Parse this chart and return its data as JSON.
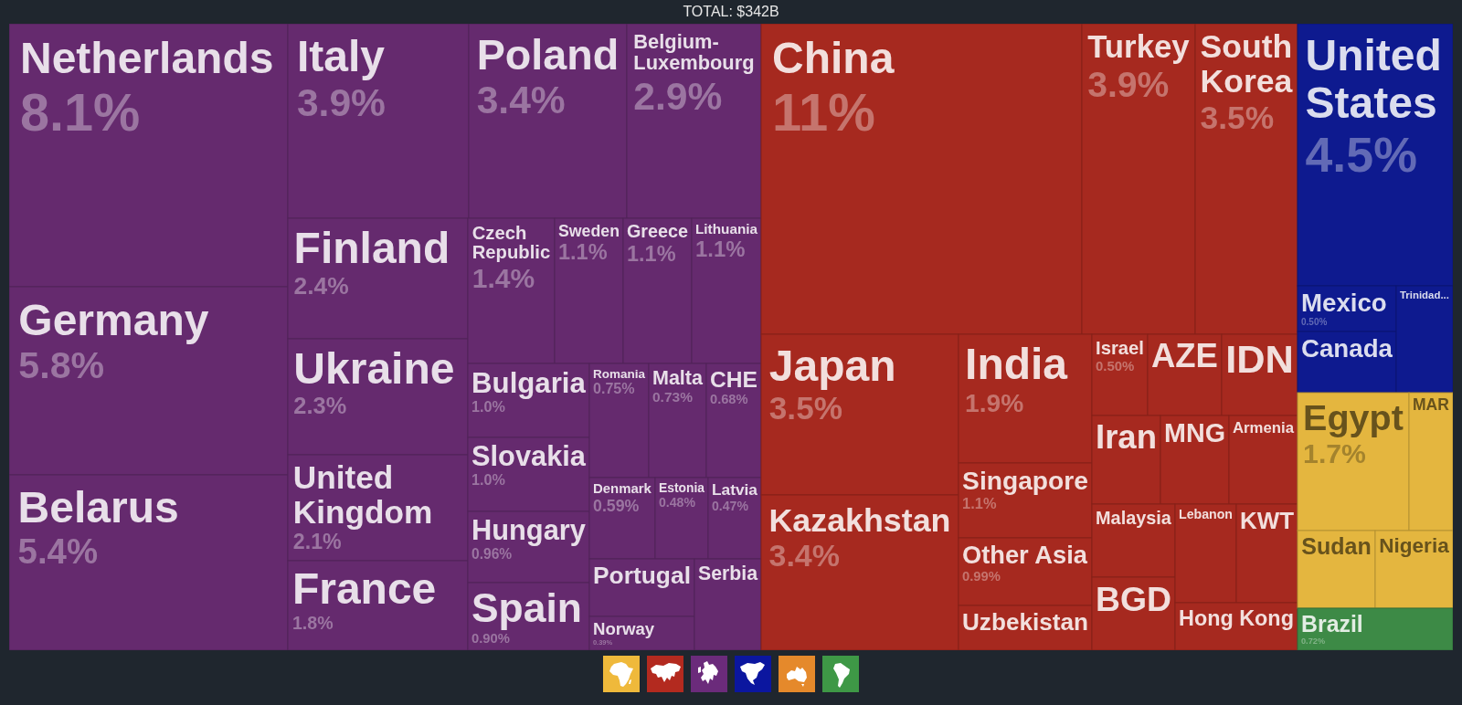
{
  "chart_data": {
    "type": "other",
    "title": "TOTAL: $342B",
    "categories": [
      "Netherlands",
      "Germany",
      "Belarus",
      "Italy",
      "Poland",
      "Belgium-Luxembourg",
      "Finland",
      "Ukraine",
      "United Kingdom",
      "France",
      "Czech Republic",
      "Sweden",
      "Greece",
      "Lithuania",
      "Bulgaria",
      "Slovakia",
      "Hungary",
      "Spain",
      "Romania",
      "Malta",
      "CHE",
      "Denmark",
      "Estonia",
      "Latvia",
      "Portugal",
      "Norway",
      "Serbia",
      "China",
      "Turkey",
      "South Korea",
      "Japan",
      "Kazakhstan",
      "India",
      "Singapore",
      "Other Asia",
      "Uzbekistan",
      "Israel",
      "AZE",
      "IDN",
      "Iran",
      "MNG",
      "Armenia",
      "Malaysia",
      "BGD",
      "Lebanon",
      "KWT",
      "Hong Kong",
      "United States",
      "Mexico",
      "Canada",
      "Trinidad...",
      "Egypt",
      "MAR",
      "Sudan",
      "Nigeria",
      "Brazil"
    ],
    "values": [
      8.1,
      5.8,
      5.4,
      3.9,
      3.4,
      2.9,
      2.4,
      2.3,
      2.1,
      1.8,
      1.4,
      1.1,
      1.1,
      1.1,
      1.0,
      1.0,
      0.96,
      0.9,
      0.75,
      0.73,
      0.68,
      0.59,
      0.48,
      0.47,
      null,
      0.39,
      null,
      11,
      3.9,
      3.5,
      3.5,
      3.4,
      1.9,
      1.1,
      0.99,
      null,
      0.5,
      null,
      null,
      null,
      null,
      null,
      null,
      null,
      null,
      null,
      null,
      4.5,
      0.5,
      null,
      null,
      1.7,
      null,
      null,
      null,
      0.72
    ],
    "value_labels": [
      "8.1%",
      "5.8%",
      "5.4%",
      "3.9%",
      "3.4%",
      "2.9%",
      "2.4%",
      "2.3%",
      "2.1%",
      "1.8%",
      "1.4%",
      "1.1%",
      "1.1%",
      "1.1%",
      "1.0%",
      "1.0%",
      "0.96%",
      "0.90%",
      "0.75%",
      "0.73%",
      "0.68%",
      "0.59%",
      "0.48%",
      "0.47%",
      null,
      "0.39%",
      null,
      "11%",
      "3.9%",
      "3.5%",
      "3.5%",
      "3.4%",
      "1.9%",
      "1.1%",
      "0.99%",
      null,
      "0.50%",
      null,
      null,
      null,
      null,
      null,
      null,
      null,
      null,
      null,
      null,
      "4.5%",
      "0.50%",
      null,
      null,
      "1.7%",
      null,
      null,
      null,
      "0.72%"
    ],
    "colors": [
      "#652a6e",
      "#652a6e",
      "#652a6e",
      "#652a6e",
      "#652a6e",
      "#652a6e",
      "#652a6e",
      "#652a6e",
      "#652a6e",
      "#652a6e",
      "#652a6e",
      "#652a6e",
      "#652a6e",
      "#652a6e",
      "#652a6e",
      "#652a6e",
      "#652a6e",
      "#652a6e",
      "#652a6e",
      "#652a6e",
      "#652a6e",
      "#652a6e",
      "#652a6e",
      "#652a6e",
      "#652a6e",
      "#652a6e",
      "#652a6e",
      "#a6291f",
      "#a6291f",
      "#a6291f",
      "#a6291f",
      "#a6291f",
      "#a6291f",
      "#a6291f",
      "#a6291f",
      "#a6291f",
      "#a6291f",
      "#a6291f",
      "#a6291f",
      "#a6291f",
      "#a6291f",
      "#a6291f",
      "#a6291f",
      "#a6291f",
      "#a6291f",
      "#a6291f",
      "#a6291f",
      "#0e1a8f",
      "#0e1a8f",
      "#0e1a8f",
      "#0e1a8f",
      "#e4b63f",
      "#e4b63f",
      "#e4b63f",
      "#e4b63f",
      "#3d8a46"
    ]
  }
}
